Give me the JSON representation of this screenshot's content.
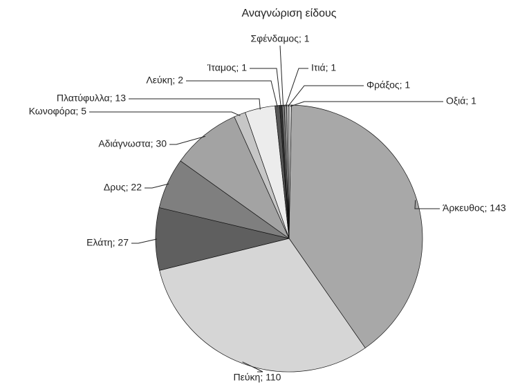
{
  "chart_data": {
    "type": "pie",
    "title": "Αναγνώριση είδους",
    "values": [
      143,
      110,
      27,
      22,
      30,
      5,
      13,
      2,
      1,
      1,
      1,
      1,
      1
    ],
    "value_labels": [
      "Άρκευθος; 143",
      "Πεύκη; 110",
      "Ελάτη; 27",
      "Δρυς; 22",
      "Αδιάγνωστα; 30",
      "Κωνοφόρα; 5",
      "Πλατύφυλλα; 13",
      "Λεύκη; 2",
      "Ίταμος; 1",
      "Σφένδαμος; 1",
      "Ιτιά; 1",
      "Φράξος; 1",
      "Οξιά; 1"
    ],
    "colors": [
      "#a8a8a8",
      "#d6d6d6",
      "#5f5f5f",
      "#7f7f7f",
      "#a3a3a3",
      "#c6c6c6",
      "#ececec",
      "#555555",
      "#333333",
      "#777777",
      "#999999",
      "#bbbbbb",
      "#dddddd"
    ]
  }
}
